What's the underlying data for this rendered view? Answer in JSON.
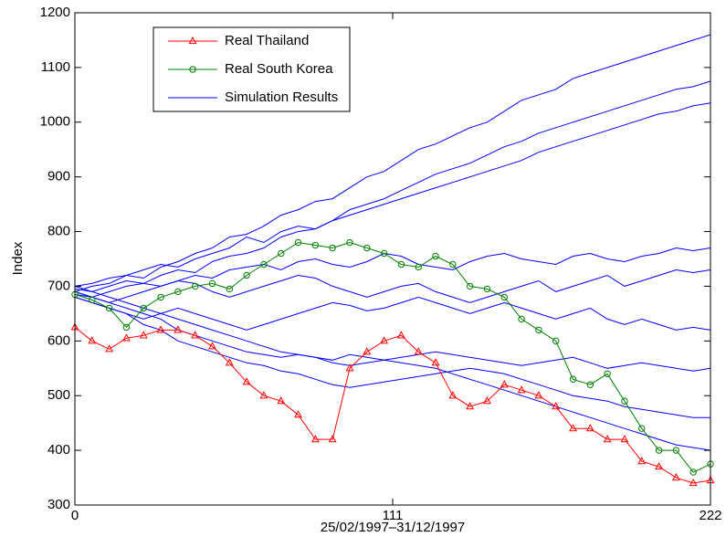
{
  "chart_data": {
    "type": "line",
    "xlabel": "25/02/1997–31/12/1997",
    "ylabel": "Index",
    "xlim": [
      0,
      222
    ],
    "xticks": [
      0,
      111,
      222
    ],
    "ylim": [
      300,
      1200
    ],
    "yticks": [
      300,
      400,
      500,
      600,
      700,
      800,
      900,
      1000,
      1100,
      1200
    ],
    "legend": "upper left",
    "x": [
      0,
      6,
      12,
      18,
      24,
      30,
      36,
      42,
      48,
      54,
      60,
      66,
      72,
      78,
      84,
      90,
      96,
      102,
      108,
      114,
      120,
      126,
      132,
      138,
      144,
      150,
      156,
      162,
      168,
      174,
      180,
      186,
      192,
      198,
      204,
      210,
      216,
      222
    ],
    "series": [
      {
        "name": "Real Thailand",
        "color": "#ff0000",
        "marker": "triangle",
        "values": [
          625,
          600,
          585,
          605,
          610,
          620,
          620,
          610,
          590,
          560,
          525,
          500,
          490,
          465,
          420,
          420,
          550,
          580,
          600,
          610,
          580,
          560,
          500,
          480,
          490,
          520,
          510,
          500,
          480,
          440,
          440,
          420,
          420,
          380,
          370,
          350,
          340,
          345
        ]
      },
      {
        "name": "Real South Korea",
        "color": "#008000",
        "marker": "circle",
        "values": [
          685,
          675,
          660,
          625,
          660,
          680,
          690,
          700,
          705,
          695,
          720,
          740,
          760,
          780,
          775,
          770,
          780,
          770,
          760,
          740,
          735,
          755,
          740,
          700,
          695,
          680,
          640,
          620,
          600,
          530,
          520,
          540,
          490,
          440,
          400,
          400,
          360,
          375
        ]
      }
    ],
    "simulations": {
      "name": "Simulation Results",
      "color": "#0000ff",
      "runs": [
        [
          690,
          700,
          705,
          720,
          715,
          735,
          745,
          760,
          770,
          790,
          795,
          810,
          830,
          840,
          855,
          860,
          880,
          900,
          910,
          930,
          950,
          960,
          975,
          990,
          1000,
          1020,
          1040,
          1050,
          1060,
          1080,
          1090,
          1100,
          1110,
          1120,
          1130,
          1140,
          1150,
          1160
        ],
        [
          695,
          690,
          700,
          710,
          705,
          720,
          730,
          725,
          745,
          755,
          760,
          770,
          790,
          800,
          805,
          820,
          840,
          850,
          860,
          875,
          890,
          905,
          915,
          925,
          940,
          955,
          965,
          980,
          990,
          1000,
          1010,
          1020,
          1030,
          1040,
          1050,
          1060,
          1065,
          1075
        ],
        [
          700,
          705,
          715,
          720,
          730,
          740,
          735,
          750,
          760,
          770,
          790,
          780,
          800,
          810,
          805,
          820,
          830,
          840,
          850,
          860,
          870,
          880,
          890,
          900,
          910,
          920,
          930,
          945,
          955,
          965,
          975,
          985,
          995,
          1005,
          1015,
          1020,
          1030,
          1035
        ],
        [
          690,
          680,
          690,
          700,
          705,
          700,
          710,
          720,
          715,
          730,
          735,
          740,
          730,
          745,
          750,
          740,
          735,
          745,
          760,
          755,
          740,
          735,
          730,
          745,
          755,
          760,
          750,
          745,
          740,
          755,
          760,
          750,
          745,
          755,
          760,
          770,
          765,
          770
        ],
        [
          685,
          680,
          670,
          680,
          690,
          700,
          710,
          705,
          690,
          680,
          690,
          700,
          710,
          720,
          715,
          700,
          690,
          680,
          690,
          700,
          705,
          690,
          680,
          670,
          680,
          690,
          700,
          710,
          690,
          700,
          710,
          720,
          700,
          710,
          720,
          730,
          725,
          730
        ],
        [
          680,
          670,
          660,
          650,
          640,
          650,
          660,
          650,
          640,
          630,
          620,
          630,
          640,
          650,
          660,
          670,
          665,
          655,
          660,
          670,
          680,
          670,
          660,
          650,
          660,
          670,
          660,
          650,
          640,
          650,
          660,
          640,
          630,
          640,
          630,
          620,
          625,
          620
        ],
        [
          690,
          680,
          670,
          660,
          650,
          640,
          620,
          610,
          600,
          590,
          580,
          575,
          570,
          575,
          570,
          560,
          555,
          560,
          565,
          570,
          575,
          580,
          575,
          570,
          565,
          560,
          555,
          560,
          565,
          570,
          560,
          550,
          555,
          560,
          555,
          550,
          545,
          550
        ],
        [
          680,
          670,
          660,
          650,
          630,
          620,
          600,
          590,
          580,
          570,
          560,
          555,
          545,
          540,
          530,
          520,
          515,
          520,
          525,
          530,
          535,
          540,
          545,
          550,
          545,
          540,
          530,
          520,
          510,
          500,
          495,
          490,
          480,
          475,
          470,
          465,
          460,
          460
        ],
        [
          700,
          690,
          680,
          670,
          660,
          650,
          640,
          630,
          620,
          610,
          600,
          590,
          580,
          575,
          570,
          565,
          575,
          570,
          565,
          560,
          555,
          550,
          540,
          530,
          520,
          510,
          500,
          490,
          480,
          470,
          460,
          450,
          440,
          430,
          420,
          410,
          405,
          400
        ]
      ]
    }
  }
}
